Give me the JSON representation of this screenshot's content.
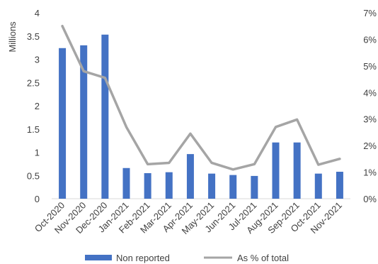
{
  "chart_data": {
    "type": "bar",
    "categories": [
      "Oct-2020",
      "Nov-2020",
      "Dec-2020",
      "Jan-2021",
      "Feb-2021",
      "Mar-2021",
      "Apr-2021",
      "May-2021",
      "Jun-2021",
      "Jul-2021",
      "Aug-2021",
      "Sep-2021",
      "Oct-2021",
      "Nov-2021"
    ],
    "ylabel": "Millions",
    "ylim": [
      0,
      4
    ],
    "yticks": [
      "0",
      "0.5",
      "1",
      "1.5",
      "2",
      "2.5",
      "3",
      "3.5",
      "4"
    ],
    "y2lim": [
      0,
      7
    ],
    "y2ticks": [
      "0%",
      "1%",
      "2%",
      "3%",
      "4%",
      "5%",
      "6%",
      "7%"
    ],
    "grid": false,
    "legend_position": "bottom",
    "series": [
      {
        "name": "Non reported",
        "type": "bar",
        "axis": "left",
        "color": "#4472c4",
        "values": [
          3.24,
          3.3,
          3.53,
          0.66,
          0.55,
          0.57,
          0.96,
          0.54,
          0.51,
          0.49,
          1.21,
          1.21,
          0.54,
          0.58
        ]
      },
      {
        "name": "As % of total",
        "type": "line",
        "axis": "right",
        "color": "#a5a5a5",
        "values": [
          6.5,
          4.8,
          4.55,
          2.7,
          1.3,
          1.35,
          2.45,
          1.35,
          1.1,
          1.3,
          2.7,
          2.98,
          1.28,
          1.5
        ]
      }
    ]
  }
}
